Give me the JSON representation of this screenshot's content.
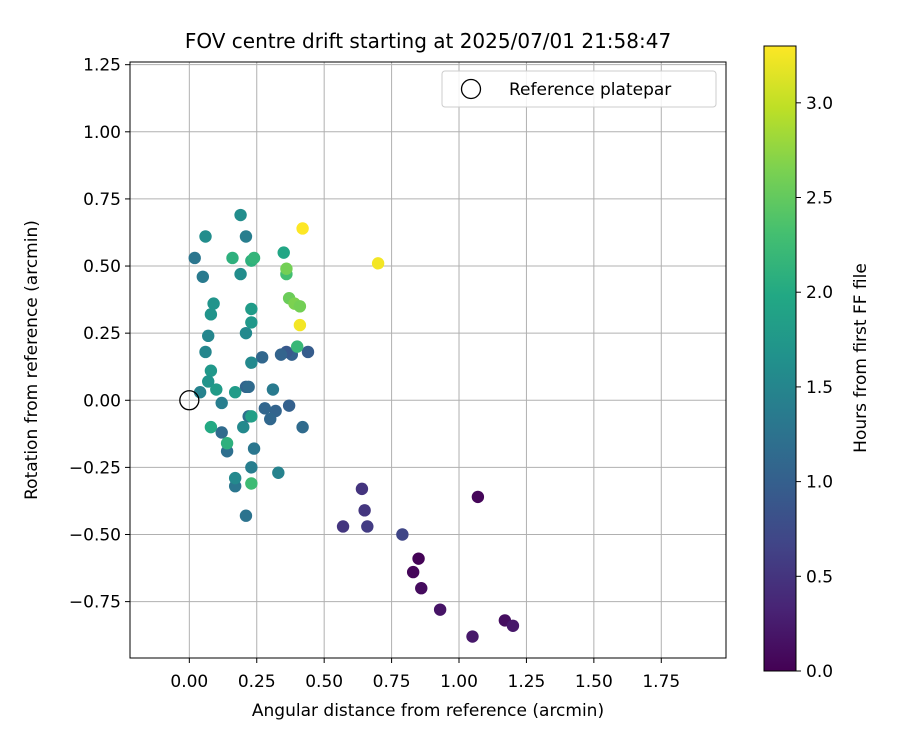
{
  "chart_data": {
    "type": "scatter",
    "title": "FOV centre drift starting at 2025/07/01 21:58:47",
    "xlabel": "Angular distance from reference (arcmin)",
    "ylabel": "Rotation from reference (arcmin)",
    "xlim": [
      -0.22,
      1.99
    ],
    "ylim": [
      -0.96,
      1.26
    ],
    "xticks": [
      "0.00",
      "0.25",
      "0.50",
      "0.75",
      "1.00",
      "1.25",
      "1.50",
      "1.75"
    ],
    "yticks": [
      "1.25",
      "1.00",
      "0.75",
      "0.50",
      "0.25",
      "0.00",
      "−0.25",
      "−0.50",
      "−0.75"
    ],
    "grid": true,
    "legend": {
      "placement": "upper right",
      "entries": [
        "Reference platepar"
      ]
    },
    "reference_point": {
      "x": 0.0,
      "y": 0.0,
      "marker": "open-circle"
    },
    "colorbar": {
      "label": "Hours from first FF file",
      "range": [
        0.0,
        3.3
      ],
      "ticks": [
        "0.0",
        "0.5",
        "1.0",
        "1.5",
        "2.0",
        "2.5",
        "3.0"
      ],
      "colormap": "viridis"
    },
    "points": [
      {
        "x": 1.07,
        "y": -0.36,
        "c": 0.05
      },
      {
        "x": 0.85,
        "y": -0.59,
        "c": 0.02
      },
      {
        "x": 0.83,
        "y": -0.64,
        "c": 0.05
      },
      {
        "x": 0.86,
        "y": -0.7,
        "c": 0.1
      },
      {
        "x": 0.93,
        "y": -0.78,
        "c": 0.18
      },
      {
        "x": 1.05,
        "y": -0.88,
        "c": 0.22
      },
      {
        "x": 1.17,
        "y": -0.82,
        "c": 0.12
      },
      {
        "x": 1.2,
        "y": -0.84,
        "c": 0.22
      },
      {
        "x": 0.64,
        "y": -0.33,
        "c": 0.5
      },
      {
        "x": 0.65,
        "y": -0.41,
        "c": 0.52
      },
      {
        "x": 0.57,
        "y": -0.47,
        "c": 0.52
      },
      {
        "x": 0.66,
        "y": -0.47,
        "c": 0.58
      },
      {
        "x": 0.79,
        "y": -0.5,
        "c": 0.68
      },
      {
        "x": 0.44,
        "y": 0.18,
        "c": 0.95
      },
      {
        "x": 0.38,
        "y": 0.17,
        "c": 1.02
      },
      {
        "x": 0.36,
        "y": 0.18,
        "c": 0.92
      },
      {
        "x": 0.34,
        "y": 0.17,
        "c": 1.05
      },
      {
        "x": 0.27,
        "y": 0.16,
        "c": 1.1
      },
      {
        "x": 0.37,
        "y": -0.02,
        "c": 1.02
      },
      {
        "x": 0.32,
        "y": -0.04,
        "c": 1.06
      },
      {
        "x": 0.28,
        "y": -0.03,
        "c": 1.08
      },
      {
        "x": 0.3,
        "y": -0.07,
        "c": 1.1
      },
      {
        "x": 0.42,
        "y": -0.1,
        "c": 1.15
      },
      {
        "x": 0.22,
        "y": -0.06,
        "c": 1.2
      },
      {
        "x": 0.21,
        "y": 0.05,
        "c": 1.05
      },
      {
        "x": 0.22,
        "y": 0.05,
        "c": 1.15
      },
      {
        "x": 0.12,
        "y": -0.12,
        "c": 1.15
      },
      {
        "x": 0.14,
        "y": -0.19,
        "c": 1.2
      },
      {
        "x": 0.24,
        "y": -0.18,
        "c": 1.3
      },
      {
        "x": 0.23,
        "y": -0.25,
        "c": 1.4
      },
      {
        "x": 0.33,
        "y": -0.27,
        "c": 1.45
      },
      {
        "x": 0.17,
        "y": -0.32,
        "c": 1.3
      },
      {
        "x": 0.21,
        "y": -0.43,
        "c": 1.25
      },
      {
        "x": 0.31,
        "y": 0.04,
        "c": 1.35
      },
      {
        "x": 0.12,
        "y": -0.01,
        "c": 1.4
      },
      {
        "x": 0.02,
        "y": 0.53,
        "c": 1.3
      },
      {
        "x": 0.05,
        "y": 0.46,
        "c": 1.35
      },
      {
        "x": 0.21,
        "y": 0.61,
        "c": 1.4
      },
      {
        "x": 0.06,
        "y": 0.18,
        "c": 1.5
      },
      {
        "x": 0.04,
        "y": 0.03,
        "c": 1.45
      },
      {
        "x": 0.07,
        "y": 0.24,
        "c": 1.5
      },
      {
        "x": 0.21,
        "y": 0.25,
        "c": 1.55
      },
      {
        "x": 0.23,
        "y": 0.14,
        "c": 1.55
      },
      {
        "x": 0.2,
        "y": -0.1,
        "c": 1.55
      },
      {
        "x": 0.17,
        "y": -0.29,
        "c": 1.55
      },
      {
        "x": 0.06,
        "y": 0.61,
        "c": 1.6
      },
      {
        "x": 0.19,
        "y": 0.69,
        "c": 1.6
      },
      {
        "x": 0.19,
        "y": 0.47,
        "c": 1.6
      },
      {
        "x": 0.09,
        "y": 0.36,
        "c": 1.7
      },
      {
        "x": 0.08,
        "y": 0.32,
        "c": 1.7
      },
      {
        "x": 0.23,
        "y": 0.29,
        "c": 1.75
      },
      {
        "x": 0.23,
        "y": 0.34,
        "c": 1.8
      },
      {
        "x": 0.08,
        "y": 0.11,
        "c": 1.75
      },
      {
        "x": 0.07,
        "y": 0.07,
        "c": 1.7
      },
      {
        "x": 0.1,
        "y": 0.04,
        "c": 1.8
      },
      {
        "x": 0.17,
        "y": 0.03,
        "c": 1.8
      },
      {
        "x": 0.23,
        "y": -0.06,
        "c": 1.85
      },
      {
        "x": 0.08,
        "y": -0.1,
        "c": 2.0
      },
      {
        "x": 0.14,
        "y": -0.16,
        "c": 2.1
      },
      {
        "x": 0.23,
        "y": -0.31,
        "c": 2.25
      },
      {
        "x": 0.35,
        "y": 0.55,
        "c": 1.95
      },
      {
        "x": 0.23,
        "y": 0.52,
        "c": 2.1
      },
      {
        "x": 0.24,
        "y": 0.53,
        "c": 2.15
      },
      {
        "x": 0.16,
        "y": 0.53,
        "c": 2.1
      },
      {
        "x": 0.36,
        "y": 0.47,
        "c": 2.3
      },
      {
        "x": 0.36,
        "y": 0.49,
        "c": 2.6
      },
      {
        "x": 0.4,
        "y": 0.2,
        "c": 2.2
      },
      {
        "x": 0.37,
        "y": 0.38,
        "c": 2.55
      },
      {
        "x": 0.39,
        "y": 0.36,
        "c": 2.65
      },
      {
        "x": 0.41,
        "y": 0.35,
        "c": 2.6
      },
      {
        "x": 0.42,
        "y": 0.64,
        "c": 3.3
      },
      {
        "x": 0.41,
        "y": 0.28,
        "c": 3.25
      },
      {
        "x": 0.7,
        "y": 0.51,
        "c": 3.25
      }
    ]
  }
}
